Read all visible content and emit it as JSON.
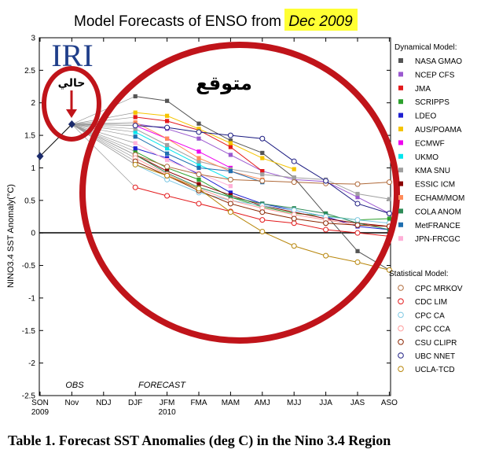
{
  "title": {
    "prefix": "Model Forecasts of ENSO from",
    "highlight": "Dec 2009",
    "highlight_color": "#ffff33"
  },
  "logo_text": "IRI",
  "annotations": {
    "current": "حالي",
    "forecast": "متوقع",
    "obs": "OBS",
    "forecast_label": "FORECAST",
    "circle_color": "#c0141a",
    "arrow_color": "#c0141a"
  },
  "caption": "Table 1. Forecast SST Anomalies (deg C) in the Nino 3.4 Region",
  "chart_data": {
    "type": "line",
    "ylabel": "NINO3.4 SST Anomaly(°C)",
    "ylim": [
      -2.5,
      3
    ],
    "yticks": [
      "-2.5",
      "-2",
      "-1.5",
      "-1",
      "-0.5",
      "0",
      "0.5",
      "1",
      "1.5",
      "2",
      "2.5",
      "3"
    ],
    "categories": [
      "SON",
      "Nov",
      "NDJ",
      "DJF",
      "JFM",
      "FMA",
      "MAM",
      "AMJ",
      "MJJ",
      "JJA",
      "JAS",
      "ASO"
    ],
    "year_labels": [
      {
        "category": "SON",
        "text": "2009"
      },
      {
        "category": "JFM",
        "text": "2010"
      }
    ],
    "observations": {
      "name": "OBS",
      "points": [
        {
          "category": "SON",
          "y": 1.18
        },
        {
          "category": "Nov",
          "y": 1.67
        }
      ]
    },
    "legend": {
      "dynamical_title": "Dynamical Model:",
      "statistical_title": "Statistical Model:"
    },
    "series": [
      {
        "name": "NASA GMAO",
        "group": "dynamical",
        "color": "#555555",
        "values": [
          null,
          null,
          null,
          2.1,
          2.03,
          1.68,
          1.42,
          1.23,
          0.85,
          0.28,
          -0.28,
          -0.57
        ]
      },
      {
        "name": "NCEP CFS",
        "group": "dynamical",
        "color": "#9b59d0",
        "values": [
          null,
          null,
          null,
          1.68,
          1.6,
          1.45,
          1.2,
          0.95,
          0.82,
          0.79,
          0.55,
          0.3
        ]
      },
      {
        "name": "JMA",
        "group": "dynamical",
        "color": "#e31a1c",
        "values": [
          null,
          null,
          null,
          1.78,
          1.72,
          1.58,
          1.32,
          0.95,
          null,
          null,
          null,
          null
        ]
      },
      {
        "name": "SCRIPPS",
        "group": "dynamical",
        "color": "#2ca02c",
        "values": [
          null,
          null,
          null,
          1.25,
          1.0,
          0.82,
          0.55,
          0.4,
          0.3,
          0.26,
          0.2,
          0.22
        ]
      },
      {
        "name": "LDEO",
        "group": "dynamical",
        "color": "#1f1fd1",
        "values": [
          null,
          null,
          null,
          1.3,
          1.15,
          0.9,
          0.62,
          0.45,
          0.35,
          0.25,
          0.1,
          0.05
        ]
      },
      {
        "name": "AUS/POAMA",
        "group": "dynamical",
        "color": "#f5c400",
        "values": [
          null,
          null,
          null,
          1.85,
          1.8,
          1.6,
          1.38,
          1.15,
          0.98,
          null,
          null,
          null
        ]
      },
      {
        "name": "ECMWF",
        "group": "dynamical",
        "color": "#ee00ee",
        "values": [
          null,
          null,
          null,
          1.65,
          1.45,
          1.25,
          1.0,
          null,
          null,
          null,
          null,
          null
        ]
      },
      {
        "name": "UKMO",
        "group": "dynamical",
        "color": "#00e5ee",
        "values": [
          null,
          null,
          null,
          1.55,
          1.3,
          1.05,
          0.82,
          null,
          null,
          null,
          null,
          null
        ]
      },
      {
        "name": "KMA SNU",
        "group": "dynamical",
        "color": "#a0a0a0",
        "values": [
          null,
          null,
          null,
          1.6,
          1.35,
          1.1,
          0.98,
          0.9,
          0.85,
          0.82,
          0.6,
          0.52
        ]
      },
      {
        "name": "ESSIC ICM",
        "group": "dynamical",
        "color": "#8b0000",
        "values": [
          null,
          null,
          null,
          1.2,
          0.95,
          0.75,
          0.58,
          0.42,
          0.32,
          0.22,
          0.15,
          0.1
        ]
      },
      {
        "name": "ECHAM/MOM",
        "group": "dynamical",
        "color": "#ff8c5a",
        "values": [
          null,
          null,
          null,
          1.7,
          1.45,
          1.15,
          0.95,
          0.82,
          null,
          null,
          null,
          null
        ]
      },
      {
        "name": "COLA ANOM",
        "group": "dynamical",
        "color": "#2e8b57",
        "values": [
          null,
          null,
          null,
          1.2,
          0.92,
          0.7,
          0.55,
          0.45,
          0.38,
          0.3,
          0.15,
          0.05
        ]
      },
      {
        "name": "MetFRANCE",
        "group": "dynamical",
        "color": "#1f6fb0",
        "values": [
          null,
          null,
          null,
          1.48,
          1.22,
          1.0,
          0.95,
          0.78,
          null,
          null,
          null,
          null
        ]
      },
      {
        "name": "JPN-FRCGC",
        "group": "dynamical",
        "color": "#ffb0d8",
        "values": [
          null,
          null,
          null,
          1.38,
          1.12,
          0.92,
          0.72,
          null,
          null,
          null,
          null,
          null
        ]
      },
      {
        "name": "CPC MRKOV",
        "group": "statistical",
        "color": "#b06a3a",
        "values": [
          null,
          null,
          null,
          1.2,
          1.02,
          0.9,
          0.82,
          0.8,
          0.78,
          0.76,
          0.75,
          0.78
        ]
      },
      {
        "name": "CDC LIM",
        "group": "statistical",
        "color": "#e31a1c",
        "values": [
          null,
          null,
          null,
          0.7,
          0.57,
          0.45,
          0.33,
          0.2,
          0.15,
          0.05,
          0.0,
          -0.05
        ]
      },
      {
        "name": "CPC CA",
        "group": "statistical",
        "color": "#7ec8e3",
        "values": [
          null,
          null,
          null,
          1.05,
          0.82,
          0.62,
          0.5,
          0.42,
          0.35,
          0.25,
          0.2,
          0.15
        ]
      },
      {
        "name": "CPC CCA",
        "group": "statistical",
        "color": "#ff9b9b",
        "values": [
          null,
          null,
          null,
          1.15,
          0.9,
          0.68,
          0.5,
          0.38,
          0.28,
          0.2,
          0.12,
          0.1
        ]
      },
      {
        "name": "CSU CLIPR",
        "group": "statistical",
        "color": "#8b2500",
        "values": [
          null,
          null,
          null,
          1.1,
          0.88,
          0.65,
          0.45,
          0.32,
          0.22,
          0.15,
          0.12,
          0.1
        ]
      },
      {
        "name": "UBC NNET",
        "group": "statistical",
        "color": "#1a1a80",
        "values": [
          null,
          null,
          null,
          1.65,
          1.62,
          1.55,
          1.5,
          1.45,
          1.1,
          0.8,
          0.45,
          0.3
        ]
      },
      {
        "name": "UCLA-TCD",
        "group": "statistical",
        "color": "#b8860b",
        "values": [
          null,
          null,
          null,
          1.05,
          0.88,
          0.68,
          0.32,
          0.02,
          -0.2,
          -0.35,
          -0.45,
          -0.57
        ]
      }
    ]
  }
}
